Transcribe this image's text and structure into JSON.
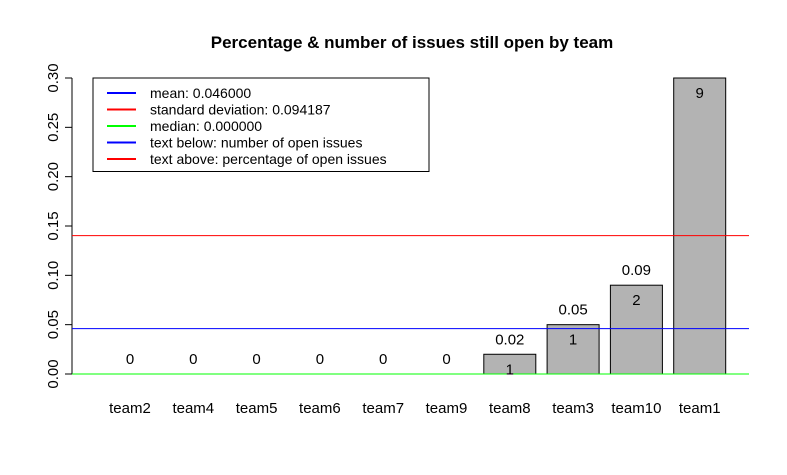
{
  "chart_data": {
    "type": "bar",
    "title": "Percentage & number of issues still open by team",
    "xlabel": "",
    "ylabel": "",
    "ylim": [
      0,
      0.3
    ],
    "yticks": [
      "0.00",
      "0.05",
      "0.10",
      "0.15",
      "0.20",
      "0.25",
      "0.30"
    ],
    "categories": [
      "team2",
      "team4",
      "team5",
      "team6",
      "team7",
      "team9",
      "team8",
      "team3",
      "team10",
      "team1"
    ],
    "values": [
      0,
      0,
      0,
      0,
      0,
      0,
      0.02,
      0.05,
      0.09,
      0.3
    ],
    "labels_above": [
      "0",
      "0",
      "0",
      "0",
      "0",
      "0",
      "0.02",
      "0.05",
      "0.09",
      ""
    ],
    "labels_below": [
      "",
      "",
      "",
      "",
      "",
      "",
      "1",
      "1",
      "2",
      "9"
    ],
    "bar_color": "#b3b3b3",
    "reference_lines": [
      {
        "name": "mean",
        "value": 0.046,
        "color": "#0000ff"
      },
      {
        "name": "mean + standard deviation",
        "value": 0.140187,
        "color": "#ff0000"
      },
      {
        "name": "median",
        "value": 0.0,
        "color": "#00ff00"
      }
    ],
    "legend": {
      "position": "top-left",
      "entries": [
        {
          "text": "mean: 0.046000",
          "color": "#0000ff"
        },
        {
          "text": "standard deviation: 0.094187",
          "color": "#ff0000"
        },
        {
          "text": "median: 0.000000",
          "color": "#00ff00"
        },
        {
          "text": "text below: number of open issues",
          "color": "#0000ff"
        },
        {
          "text": "text above: percentage of open issues",
          "color": "#ff0000"
        }
      ]
    },
    "grid": false
  }
}
